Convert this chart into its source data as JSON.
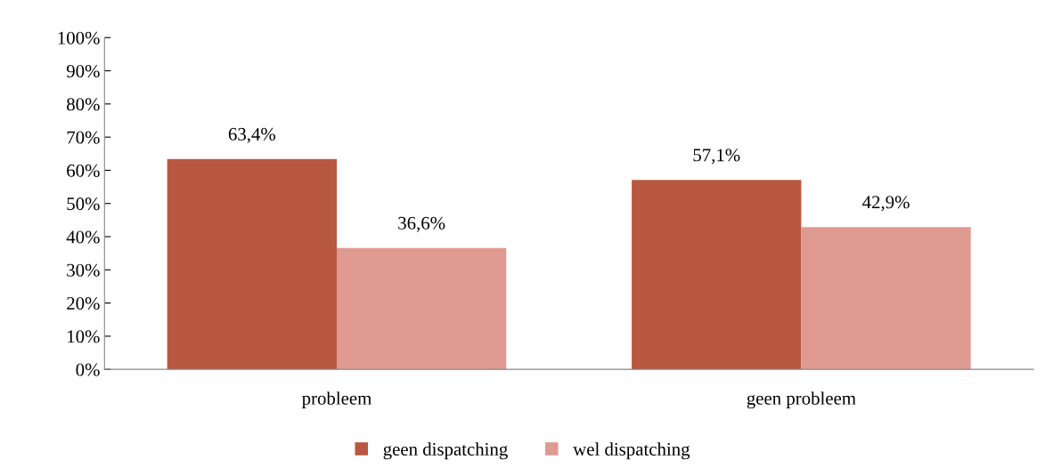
{
  "chart_data": {
    "type": "bar",
    "categories": [
      "probleem",
      "geen probleem"
    ],
    "series": [
      {
        "name": "geen dispatching",
        "color": "#b95841",
        "values": [
          63.4,
          57.1
        ],
        "value_labels": [
          "63,4%",
          "57,1%"
        ]
      },
      {
        "name": "wel dispatching",
        "color": "#df9a91",
        "values": [
          36.6,
          42.9
        ],
        "value_labels": [
          "36,6%",
          "42,9%"
        ]
      }
    ],
    "ylim": [
      0,
      100
    ],
    "yticks": [
      {
        "value": 0,
        "label": "0%"
      },
      {
        "value": 10,
        "label": "10%"
      },
      {
        "value": 20,
        "label": "20%"
      },
      {
        "value": 30,
        "label": "30%"
      },
      {
        "value": 40,
        "label": "40%"
      },
      {
        "value": 50,
        "label": "50%"
      },
      {
        "value": 60,
        "label": "60%"
      },
      {
        "value": 70,
        "label": "70%"
      },
      {
        "value": 80,
        "label": "80%"
      },
      {
        "value": 90,
        "label": "90%"
      },
      {
        "value": 100,
        "label": "100%"
      }
    ],
    "grid": false,
    "legend": "bottom"
  }
}
